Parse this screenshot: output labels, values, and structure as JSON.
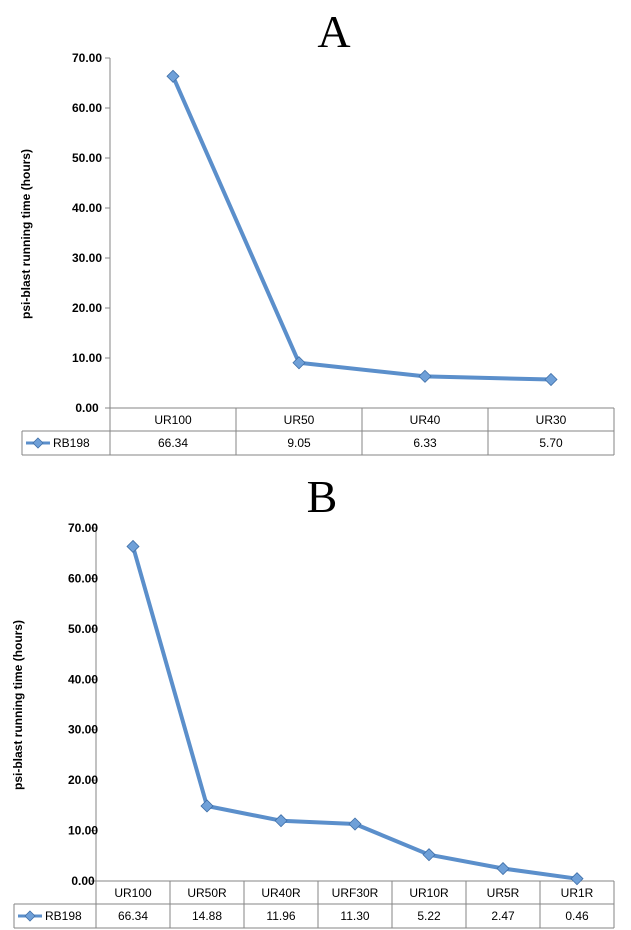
{
  "colors": {
    "line": "#5b8fcb",
    "marker": "#6fa0d8",
    "marker_stroke": "#3f6fa8",
    "grid": "#c8c8c8",
    "axis": "#868686"
  },
  "chart_data": [
    {
      "type": "line",
      "title": "A",
      "ylabel": "psi-blast running time (hours)",
      "xlabel": "",
      "ylim": [
        0,
        70
      ],
      "ytick_step": 10,
      "ytick_labels": [
        "0.00",
        "10.00",
        "20.00",
        "30.00",
        "40.00",
        "50.00",
        "60.00",
        "70.00"
      ],
      "grid": false,
      "legend": "table",
      "categories": [
        "UR100",
        "UR50",
        "UR40",
        "UR30"
      ],
      "series": [
        {
          "name": "RB198",
          "values": [
            66.34,
            9.05,
            6.33,
            5.7
          ],
          "value_labels": [
            "66.34",
            "9.05",
            "6.33",
            "5.70"
          ]
        }
      ]
    },
    {
      "type": "line",
      "title": "B",
      "ylabel": "psi-blast running time (hours)",
      "xlabel": "",
      "ylim": [
        0,
        70
      ],
      "ytick_step": 10,
      "ytick_labels": [
        "0.00",
        "10.00",
        "20.00",
        "30.00",
        "40.00",
        "50.00",
        "60.00",
        "70.00"
      ],
      "grid": false,
      "legend": "table",
      "categories": [
        "UR100",
        "UR50R",
        "UR40R",
        "URF30R",
        "UR10R",
        "UR5R",
        "UR1R"
      ],
      "series": [
        {
          "name": "RB198",
          "values": [
            66.34,
            14.88,
            11.96,
            11.3,
            5.22,
            2.47,
            0.46
          ],
          "value_labels": [
            "66.34",
            "14.88",
            "11.96",
            "11.30",
            "5.22",
            "2.47",
            "0.46"
          ]
        }
      ]
    }
  ]
}
